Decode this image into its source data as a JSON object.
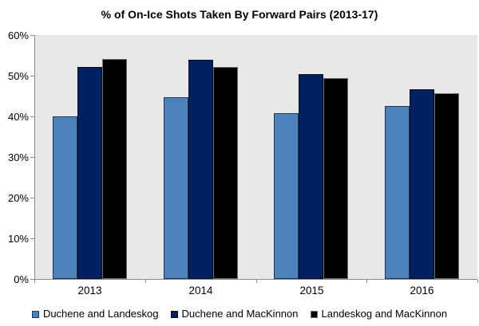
{
  "chart_data": {
    "type": "bar",
    "title": "% of On-Ice Shots Taken By Forward Pairs (2013-17)",
    "categories": [
      "2013",
      "2014",
      "2015",
      "2016"
    ],
    "series": [
      {
        "name": "Duchene and Landeskog",
        "color": "#4F81BD",
        "border_color": "#17375D",
        "values": [
          40.0,
          44.7,
          40.8,
          42.5
        ]
      },
      {
        "name": "Duchene and MacKinnon",
        "color": "#002060",
        "border_color": "#0D0D1A",
        "values": [
          52.2,
          53.9,
          50.4,
          46.7
        ]
      },
      {
        "name": "Landeskog and MacKinnon",
        "color": "#000000",
        "border_color": "#6E6E6E",
        "values": [
          54.2,
          52.2,
          49.5,
          45.7
        ]
      }
    ],
    "xlabel": "",
    "ylabel": "",
    "ylim": [
      0,
      60
    ],
    "ytick_labels": [
      "0%",
      "10%",
      "20%",
      "30%",
      "40%",
      "50%",
      "60%"
    ],
    "grid": false,
    "legend_position": "bottom",
    "plot_bg_color": "#E8E8E8",
    "axis_color": "#8C8C8C",
    "text_color": "#000000"
  }
}
